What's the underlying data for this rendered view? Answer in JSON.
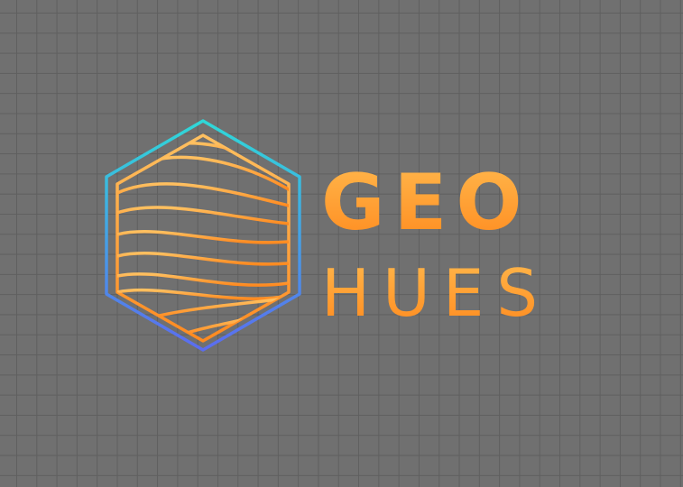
{
  "brand": {
    "word_top": "GEO",
    "word_bottom": "HUES"
  },
  "colors": {
    "background": "#707070",
    "grid_line": "#5f5f5f",
    "text_gradient_top": "#ffb84d",
    "text_gradient_bottom": "#ff8a1e",
    "hex_outline_top": "#2fd8d8",
    "hex_outline_bottom": "#5b6cf0",
    "waves_top": "#ffc060",
    "waves_bottom": "#ff8a20"
  },
  "icons": {
    "logo": "hexagon-waves-icon"
  }
}
